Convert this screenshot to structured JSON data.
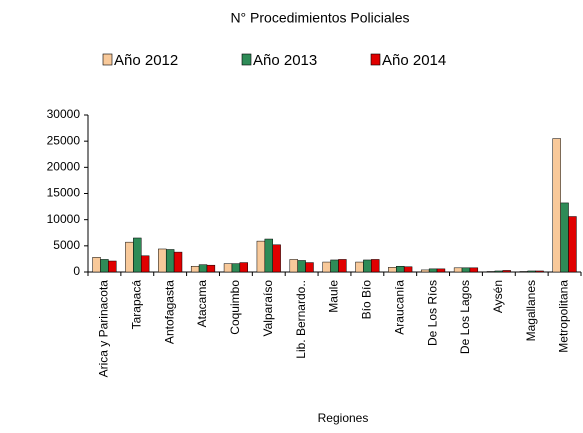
{
  "chart_data": {
    "type": "bar",
    "title": "N° Procedimientos Policiales",
    "x_label": "Regiones",
    "categories": [
      "Arica y Parinacota",
      "Tarapacá",
      "Antofagasta",
      "Atacama",
      "Coquimbo",
      "Valparaíso",
      "Lib. Bernardo..",
      "Maule",
      "Bío Bío",
      "Araucanía",
      "De Los Ríos",
      "De Los Lagos",
      "Aysén",
      "Magallanes",
      "Metropolitana"
    ],
    "series": [
      {
        "name": "Año 2012",
        "color": "#f8c99a",
        "values": [
          2800,
          5700,
          4400,
          1100,
          1600,
          5900,
          2400,
          1900,
          1900,
          900,
          400,
          800,
          100,
          100,
          25500
        ]
      },
      {
        "name": "Año 2013",
        "color": "#2e8b57",
        "values": [
          2400,
          6500,
          4300,
          1400,
          1600,
          6300,
          2200,
          2300,
          2300,
          1100,
          600,
          800,
          200,
          200,
          13200
        ]
      },
      {
        "name": "Año 2014",
        "color": "#e00000",
        "values": [
          2100,
          3100,
          3800,
          1300,
          1800,
          5200,
          1800,
          2400,
          2400,
          1000,
          600,
          800,
          300,
          200,
          10600
        ]
      }
    ],
    "ylim": [
      0,
      30000
    ],
    "yticks": [
      0,
      5000,
      10000,
      15000,
      20000,
      25000,
      30000
    ],
    "grid": false
  }
}
